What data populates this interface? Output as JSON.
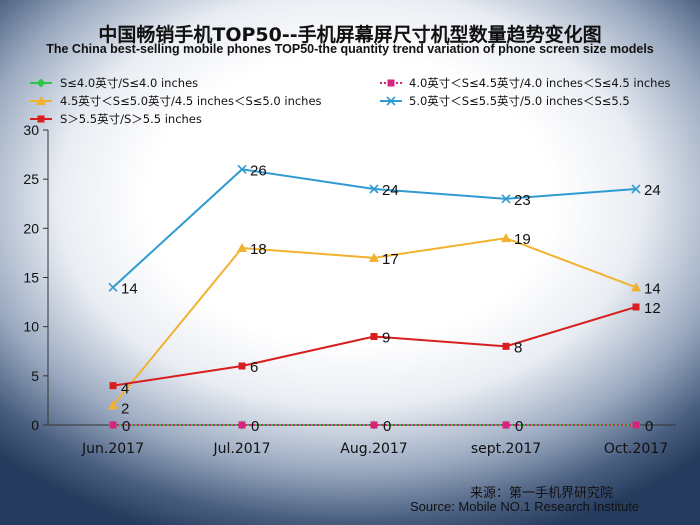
{
  "title": "中国畅销手机TOP50--手机屏幕屏尺寸机型数量趋势变化图",
  "subtitle": "The China best-selling mobile phones TOP50-the quantity trend variation of phone screen size models",
  "source_cn": "来源：第一手机界研究院",
  "source_en": "Source: Mobile NO.1 Research Institute",
  "colors": {
    "s1": "#2ec44a",
    "s2": "#d6237e",
    "s3": "#f2b12e",
    "s4": "#2f9bd0",
    "s5": "#d81e1e",
    "axis": "#333333",
    "text": "#111111"
  },
  "chart_data": {
    "type": "line",
    "categories": [
      "Jun.2017",
      "Jul.2017",
      "Aug.2017",
      "sept.2017",
      "Oct.2017"
    ],
    "ylim": [
      0,
      30
    ],
    "yticks": [
      0,
      5,
      10,
      15,
      20,
      25,
      30
    ],
    "grid": false,
    "legend_position": "top",
    "series": [
      {
        "name": "S≤4.0英寸/S≤4.0 inches",
        "marker": "diamond",
        "values": [
          0,
          0,
          0,
          0,
          0
        ],
        "labels": false
      },
      {
        "name": "4.0英寸＜S≤4.5英寸/4.0 inches＜S≤4.5 inches",
        "marker": "square",
        "dashed": true,
        "values": [
          0,
          0,
          0,
          0,
          0
        ],
        "labels": true
      },
      {
        "name": "4.5英寸＜S≤5.0英寸/4.5 inches＜S≤5.0 inches",
        "marker": "triangle",
        "values": [
          2,
          18,
          17,
          19,
          14
        ],
        "labels": true
      },
      {
        "name": "5.0英寸＜S≤5.5英寸/5.0 inches＜S≤5.5",
        "marker": "cross",
        "values": [
          14,
          26,
          24,
          23,
          24
        ],
        "labels": true
      },
      {
        "name": "S＞5.5英寸/S＞5.5 inches",
        "marker": "square",
        "values": [
          4,
          6,
          9,
          8,
          12
        ],
        "labels": true
      }
    ]
  }
}
